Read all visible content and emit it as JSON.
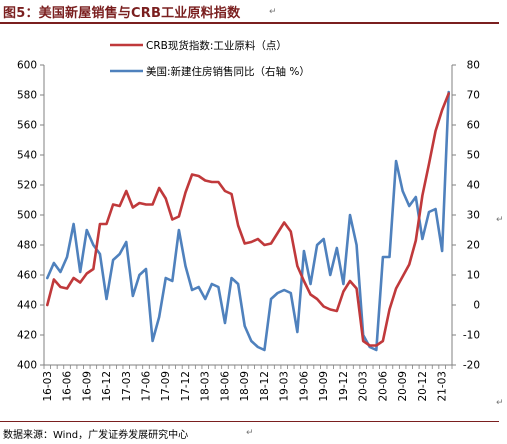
{
  "figure": {
    "title": "图5：美国新屋销售与CRB工业原料指数",
    "source": "数据来源：Wind，广发证券发展研究中心",
    "paragraph_mark": "↵"
  },
  "colors": {
    "crb": "#c0393b",
    "sales": "#4f81bd",
    "title": "#7a1f1f",
    "axis": "#808080"
  },
  "chart_data": {
    "type": "line",
    "title": "",
    "x": [
      "16-03",
      "16-04",
      "16-05",
      "16-06",
      "16-07",
      "16-08",
      "16-09",
      "16-10",
      "16-11",
      "16-12",
      "17-01",
      "17-02",
      "17-03",
      "17-04",
      "17-05",
      "17-06",
      "17-07",
      "17-08",
      "17-09",
      "17-10",
      "17-11",
      "17-12",
      "18-01",
      "18-02",
      "18-03",
      "18-04",
      "18-05",
      "18-06",
      "18-07",
      "18-08",
      "18-09",
      "18-10",
      "18-11",
      "18-12",
      "19-01",
      "19-02",
      "19-03",
      "19-04",
      "19-05",
      "19-06",
      "19-07",
      "19-08",
      "19-09",
      "19-10",
      "19-11",
      "19-12",
      "20-01",
      "20-02",
      "20-03",
      "20-04",
      "20-05",
      "20-06",
      "20-07",
      "20-08",
      "20-09",
      "20-10",
      "20-11",
      "20-12",
      "21-01",
      "21-02",
      "21-03",
      "21-04"
    ],
    "x_tick_labels": [
      "16-03",
      "16-06",
      "16-09",
      "16-12",
      "17-03",
      "17-06",
      "17-09",
      "17-12",
      "18-03",
      "18-06",
      "18-09",
      "18-12",
      "19-03",
      "19-06",
      "19-09",
      "19-12",
      "20-03",
      "20-06",
      "20-09",
      "20-12",
      "21-03"
    ],
    "series": [
      {
        "name": "CRB现货指数:工业原料（点）",
        "axis": "left",
        "values": [
          440,
          457,
          452,
          451,
          458,
          455,
          461,
          464,
          494,
          494,
          507,
          506,
          516,
          505,
          508,
          507,
          507,
          518,
          511,
          497,
          499,
          515,
          527,
          526,
          523,
          522,
          522,
          516,
          514,
          493,
          481,
          482,
          484,
          480,
          481,
          488,
          495,
          489,
          466,
          456,
          447,
          444,
          439,
          437,
          436,
          449,
          456,
          451,
          416,
          413,
          413,
          416,
          437,
          451,
          459,
          467,
          483,
          513,
          534,
          556,
          570,
          581
        ]
      },
      {
        "name": "美国:新建住房销售同比（右轴 %）",
        "axis": "right",
        "values": [
          9,
          14,
          11,
          16,
          27,
          11,
          25,
          20,
          17,
          2,
          15,
          17,
          21,
          3,
          10,
          12,
          -12,
          -4,
          9,
          8,
          25,
          13,
          5,
          6,
          2,
          7,
          6,
          -6,
          9,
          7,
          -7,
          -12,
          -14,
          -15,
          2,
          4,
          5,
          4,
          -9,
          18,
          7,
          20,
          22,
          10,
          19,
          7,
          30,
          20,
          -10,
          -14,
          -15,
          16,
          16,
          48,
          38,
          33,
          36,
          22,
          31,
          32,
          18,
          71
        ]
      }
    ],
    "y_left": {
      "min": 400,
      "max": 600,
      "ticks": [
        400,
        420,
        440,
        460,
        480,
        500,
        520,
        540,
        560,
        580,
        600
      ]
    },
    "y_right": {
      "min": -20,
      "max": 80,
      "ticks": [
        -20,
        -10,
        0,
        10,
        20,
        30,
        40,
        50,
        60,
        70,
        80
      ]
    },
    "grid": false,
    "legend_position": "top-center"
  }
}
